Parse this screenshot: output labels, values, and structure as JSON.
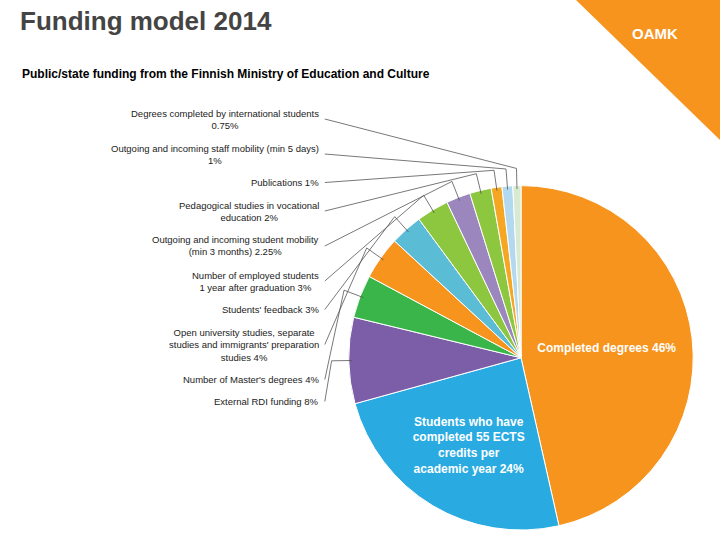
{
  "chart_data": {
    "type": "pie",
    "title": "Funding model 2014",
    "subtitle": "Public/state funding from the Finnish Ministry of Education and Culture",
    "categories": [
      "Completed degrees 46%",
      "Students who have\ncompleted 55 ECTS\ncredits per\nacademic year 24%",
      "External RDI funding 8%",
      "Number of Master's degrees 4%",
      "Open university studies, separate\nstudies and immigrants' preparation\nstudies 4%",
      "Students' feedback 3%",
      "Number of employed students\n1 year after graduation 3%",
      "Outgoing and incoming student mobility\n(min 3 months) 2.25%",
      "Pedagogical studies in vocational\neducation 2%",
      "Publications 1%",
      "Outgoing and incoming staff mobility (min 5 days)\n1%",
      "Degrees completed by international students\n0.75%"
    ],
    "values": [
      46,
      24,
      8,
      4,
      4,
      3,
      3,
      2.25,
      2,
      1,
      1,
      0.75
    ],
    "colors": [
      "#F7941D",
      "#29ABE2",
      "#7B5EA7",
      "#39B54A",
      "#F7941D",
      "#5BBCD6",
      "#8DC63F",
      "#9B86BD",
      "#8DC63F",
      "#F5A623",
      "#B3D9F0",
      "#D9EAD3"
    ],
    "data_labels": true,
    "annotations": [
      "OAMK"
    ]
  }
}
